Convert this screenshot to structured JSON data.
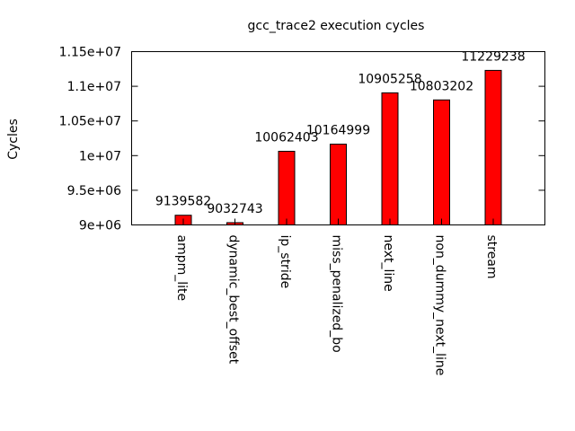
{
  "chart_data": {
    "type": "bar",
    "title": "gcc_trace2 execution cycles",
    "xlabel": "",
    "ylabel": "Cycles",
    "ylim": [
      9000000,
      11500000
    ],
    "yticks": [
      9000000,
      9500000,
      10000000,
      10500000,
      11000000,
      11500000
    ],
    "ytick_labels": [
      "9e+06",
      "9.5e+06",
      "1e+07",
      "1.05e+07",
      "1.1e+07",
      "1.15e+07"
    ],
    "categories": [
      "ampm_lite",
      "dynamic_best_offset",
      "ip_stride",
      "miss_penalized_bo",
      "next_line",
      "non_dummy_next_line",
      "stream"
    ],
    "values": [
      9139582,
      9032743,
      10062403,
      10164999,
      10905258,
      10803202,
      11229238
    ],
    "value_labels": [
      "9139582",
      "9032743",
      "10062403",
      "10164999",
      "10905258",
      "10803202",
      "11229238"
    ],
    "bar_color": "#ff0000",
    "grid": false,
    "legend": "none"
  }
}
